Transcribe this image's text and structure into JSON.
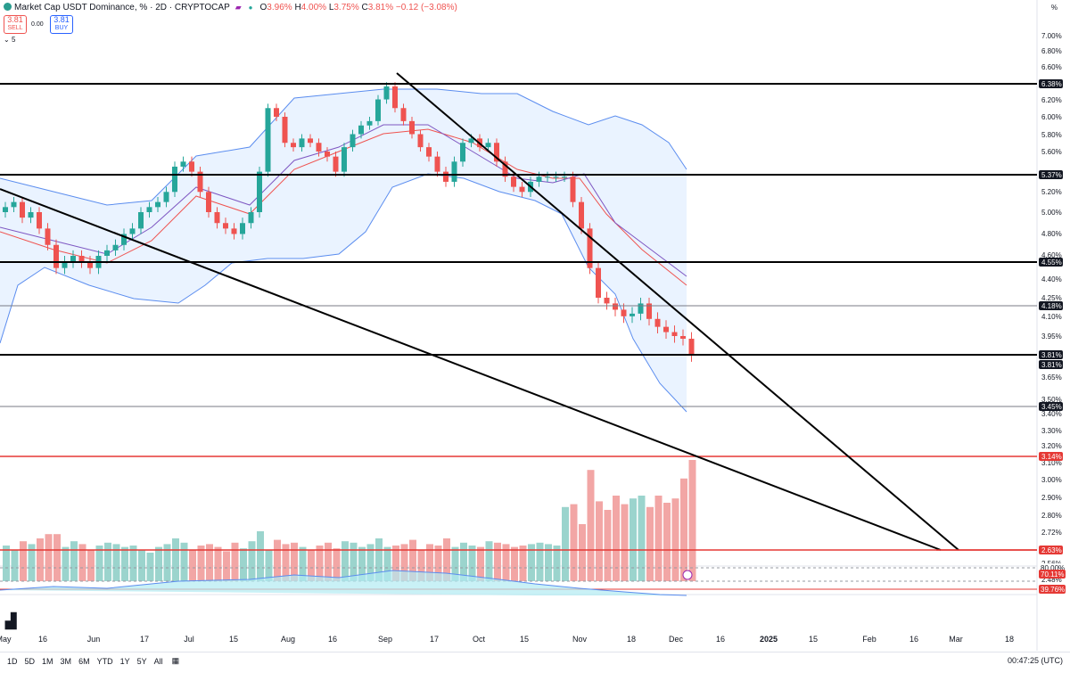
{
  "header": {
    "title": "Market Cap USDT Dominance, % · 2D · CRYPTOCAP",
    "open_label": "O",
    "open": "3.96%",
    "high_label": "H",
    "high": "4.00%",
    "low_label": "L",
    "low": "3.75%",
    "close_label": "C",
    "close": "3.81%",
    "change": "−0.12 (−3.08%)"
  },
  "trade": {
    "sell_value": "3.81",
    "sell_label": "SELL",
    "spread": "0.00",
    "buy_value": "3.81",
    "buy_label": "BUY"
  },
  "indicator_count": "5",
  "axis_unit": "%",
  "colors": {
    "up": "#26a69a",
    "down": "#ef5350",
    "band": "#5b8def",
    "band_fill": "#eaf3ff",
    "line": "#000000",
    "red_level": "#e53935"
  },
  "chart_data": {
    "type": "candlestick",
    "y_ticks": [
      "7.00%",
      "6.80%",
      "6.60%",
      "6.38%",
      "6.20%",
      "6.00%",
      "5.80%",
      "5.60%",
      "5.37%",
      "5.20%",
      "5.00%",
      "4.80%",
      "4.60%",
      "4.55%",
      "4.40%",
      "4.25%",
      "4.18%",
      "4.10%",
      "3.95%",
      "3.81%",
      "3.65%",
      "3.50%",
      "3.45%",
      "3.40%",
      "3.30%",
      "3.20%",
      "3.14%",
      "3.10%",
      "3.00%",
      "2.90%",
      "2.80%",
      "2.72%",
      "2.63%",
      "2.56%",
      "2.48%"
    ],
    "x_ticks": [
      "May",
      "16",
      "Jun",
      "17",
      "Jul",
      "15",
      "Aug",
      "16",
      "Sep",
      "17",
      "Oct",
      "15",
      "Nov",
      "18",
      "Dec",
      "16",
      "2025",
      "15",
      "Feb",
      "16",
      "Mar",
      "18"
    ],
    "horizontal_levels": [
      {
        "value": 6.38,
        "label": "6.38%",
        "style": "black"
      },
      {
        "value": 5.37,
        "label": "5.37%",
        "style": "black"
      },
      {
        "value": 4.55,
        "label": "4.55%",
        "style": "black"
      },
      {
        "value": 4.18,
        "label": "4.18%",
        "style": "thin"
      },
      {
        "value": 3.81,
        "label": "3.81%",
        "style": "black"
      },
      {
        "value": 3.45,
        "label": "3.45%",
        "style": "thin"
      },
      {
        "value": 3.14,
        "label": "3.14%",
        "style": "red"
      },
      {
        "value": 2.63,
        "label": "2.63%",
        "style": "red"
      }
    ],
    "last_price_labels": [
      "3.81%",
      "3.81%"
    ],
    "rsi_labels": [
      "80.00%",
      "70.11%",
      "39.76%"
    ]
  },
  "bottom_bar": {
    "ranges": [
      "1D",
      "5D",
      "1M",
      "3M",
      "6M",
      "YTD",
      "1Y",
      "5Y",
      "All"
    ],
    "clock": "00:47:25 (UTC)"
  }
}
